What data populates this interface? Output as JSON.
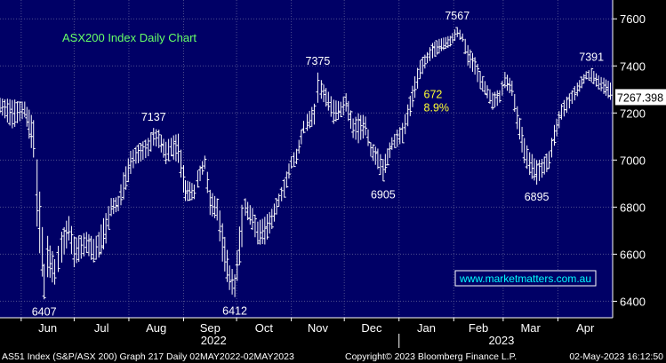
{
  "footer": {
    "left": "AS51 Index (S&P/ASX 200) Graph 217  Daily 02MAY2022-02MAY2023",
    "center": "Copyright© 2023 Bloomberg Finance L.P.",
    "right": "02-May-2023 16:12:50"
  },
  "colors": {
    "plot_bg": "#000066",
    "grid": "#4d4d8f",
    "bar": "#ffffff",
    "title_text": "#66ff66",
    "annotation_yellow": "#ffff33",
    "watermark_text": "#00ffff",
    "last_price_box": "#ffffff"
  },
  "chart_data": {
    "type": "ohlc",
    "title": "ASX200 Index Daily Chart",
    "watermark": "www.marketmatters.com.au",
    "x_axis": {
      "range": [
        "2022-05-20",
        "2023-05-02"
      ],
      "month_labels": [
        {
          "label": "Jun",
          "date": "2022-06-01"
        },
        {
          "label": "Jul",
          "date": "2022-07-01"
        },
        {
          "label": "Aug",
          "date": "2022-08-01"
        },
        {
          "label": "Sep",
          "date": "2022-09-01"
        },
        {
          "label": "Oct",
          "date": "2022-10-01"
        },
        {
          "label": "Nov",
          "date": "2022-11-01"
        },
        {
          "label": "Dec",
          "date": "2022-12-01"
        },
        {
          "label": "Jan",
          "date": "2023-01-01"
        },
        {
          "label": "Feb",
          "date": "2023-02-01"
        },
        {
          "label": "Mar",
          "date": "2023-03-01"
        },
        {
          "label": "Apr",
          "date": "2023-04-01"
        }
      ],
      "year_labels": [
        {
          "label": "2022",
          "date": "2022-09-18"
        },
        {
          "label": "2023",
          "date": "2023-02-28"
        }
      ],
      "year_divider_date": "2023-01-01"
    },
    "y_axis": {
      "range": [
        6330,
        7680
      ],
      "ticks": [
        6400,
        6600,
        6800,
        7000,
        7200,
        7400,
        7600
      ],
      "side": "right"
    },
    "grid": true,
    "last_price": 7267.398,
    "annotations": [
      {
        "text": "6407",
        "date": "2022-06-14",
        "value": 6407,
        "position": "below"
      },
      {
        "text": "7137",
        "date": "2022-08-15",
        "value": 7137,
        "position": "above"
      },
      {
        "text": "6412",
        "date": "2022-09-30",
        "value": 6412,
        "position": "below"
      },
      {
        "text": "7375",
        "date": "2022-11-16",
        "value": 7375,
        "position": "above"
      },
      {
        "text": "6905",
        "date": "2022-12-23",
        "value": 6905,
        "position": "below"
      },
      {
        "text": "7567",
        "date": "2023-02-03",
        "value": 7567,
        "position": "above"
      },
      {
        "text": "6895",
        "date": "2023-03-20",
        "value": 6895,
        "position": "below"
      },
      {
        "text": "7391",
        "date": "2023-04-20",
        "value": 7391,
        "position": "above"
      }
    ],
    "measurement": {
      "points": "672",
      "percent": "8.9%",
      "date": "2023-01-15",
      "value": 7210
    },
    "series": [
      {
        "points": [
          [
            "2022-05-20",
            7200,
            7265
          ],
          [
            "2022-05-27",
            7130,
            7260
          ],
          [
            "2022-06-03",
            7180,
            7250
          ],
          [
            "2022-06-08",
            7000,
            7180
          ],
          [
            "2022-06-10",
            6700,
            7020
          ],
          [
            "2022-06-13",
            6500,
            6720
          ],
          [
            "2022-06-14",
            6407,
            6560
          ],
          [
            "2022-06-16",
            6500,
            6680
          ],
          [
            "2022-06-20",
            6470,
            6580
          ],
          [
            "2022-06-22",
            6520,
            6640
          ],
          [
            "2022-06-24",
            6560,
            6700
          ],
          [
            "2022-06-28",
            6650,
            6770
          ],
          [
            "2022-07-01",
            6540,
            6680
          ],
          [
            "2022-07-05",
            6580,
            6680
          ],
          [
            "2022-07-08",
            6600,
            6700
          ],
          [
            "2022-07-12",
            6560,
            6670
          ],
          [
            "2022-07-15",
            6580,
            6700
          ],
          [
            "2022-07-19",
            6640,
            6780
          ],
          [
            "2022-07-22",
            6760,
            6840
          ],
          [
            "2022-07-26",
            6780,
            6850
          ],
          [
            "2022-07-29",
            6830,
            6950
          ],
          [
            "2022-08-02",
            6940,
            7040
          ],
          [
            "2022-08-05",
            6980,
            7060
          ],
          [
            "2022-08-09",
            7000,
            7080
          ],
          [
            "2022-08-12",
            7010,
            7100
          ],
          [
            "2022-08-15",
            7060,
            7137
          ],
          [
            "2022-08-18",
            7050,
            7130
          ],
          [
            "2022-08-22",
            6980,
            7080
          ],
          [
            "2022-08-25",
            7010,
            7100
          ],
          [
            "2022-08-29",
            6980,
            7120
          ],
          [
            "2022-09-01",
            6860,
            6980
          ],
          [
            "2022-09-02",
            6820,
            6920
          ],
          [
            "2022-09-07",
            6830,
            6900
          ],
          [
            "2022-09-09",
            6880,
            6960
          ],
          [
            "2022-09-13",
            6960,
            7020
          ],
          [
            "2022-09-16",
            6760,
            6880
          ],
          [
            "2022-09-20",
            6740,
            6840
          ],
          [
            "2022-09-23",
            6560,
            6740
          ],
          [
            "2022-09-27",
            6440,
            6560
          ],
          [
            "2022-09-30",
            6412,
            6520
          ],
          [
            "2022-10-04",
            6620,
            6820
          ],
          [
            "2022-10-06",
            6760,
            6840
          ],
          [
            "2022-10-10",
            6700,
            6800
          ],
          [
            "2022-10-13",
            6640,
            6740
          ],
          [
            "2022-10-17",
            6640,
            6760
          ],
          [
            "2022-10-21",
            6700,
            6800
          ],
          [
            "2022-10-25",
            6800,
            6860
          ],
          [
            "2022-10-28",
            6840,
            6920
          ],
          [
            "2022-11-01",
            6960,
            7020
          ],
          [
            "2022-11-04",
            6980,
            7050
          ],
          [
            "2022-11-08",
            7110,
            7170
          ],
          [
            "2022-11-10",
            7120,
            7200
          ],
          [
            "2022-11-14",
            7150,
            7240
          ],
          [
            "2022-11-16",
            7240,
            7375
          ],
          [
            "2022-11-18",
            7260,
            7340
          ],
          [
            "2022-11-22",
            7210,
            7290
          ],
          [
            "2022-11-25",
            7150,
            7260
          ],
          [
            "2022-11-29",
            7180,
            7250
          ],
          [
            "2022-12-02",
            7200,
            7290
          ],
          [
            "2022-12-06",
            7090,
            7180
          ],
          [
            "2022-12-09",
            7070,
            7200
          ],
          [
            "2022-12-13",
            7100,
            7190
          ],
          [
            "2022-12-16",
            7010,
            7080
          ],
          [
            "2022-12-20",
            6960,
            7050
          ],
          [
            "2022-12-23",
            6905,
            7010
          ],
          [
            "2022-12-28",
            7040,
            7100
          ],
          [
            "2023-01-03",
            7070,
            7160
          ],
          [
            "2023-01-06",
            7140,
            7240
          ],
          [
            "2023-01-10",
            7260,
            7360
          ],
          [
            "2023-01-13",
            7340,
            7430
          ],
          [
            "2023-01-17",
            7410,
            7460
          ],
          [
            "2023-01-20",
            7430,
            7500
          ],
          [
            "2023-01-25",
            7460,
            7520
          ],
          [
            "2023-01-30",
            7480,
            7530
          ],
          [
            "2023-02-03",
            7520,
            7567
          ],
          [
            "2023-02-06",
            7500,
            7540
          ],
          [
            "2023-02-09",
            7400,
            7490
          ],
          [
            "2023-02-13",
            7360,
            7440
          ],
          [
            "2023-02-16",
            7300,
            7380
          ],
          [
            "2023-02-20",
            7260,
            7320
          ],
          [
            "2023-02-23",
            7210,
            7290
          ],
          [
            "2023-02-27",
            7240,
            7300
          ],
          [
            "2023-03-02",
            7300,
            7380
          ],
          [
            "2023-03-06",
            7270,
            7340
          ],
          [
            "2023-03-09",
            7130,
            7230
          ],
          [
            "2023-03-13",
            6980,
            7100
          ],
          [
            "2023-03-16",
            6930,
            7040
          ],
          [
            "2023-03-20",
            6895,
            7000
          ],
          [
            "2023-03-23",
            6920,
            7010
          ],
          [
            "2023-03-27",
            6960,
            7040
          ],
          [
            "2023-03-30",
            7060,
            7150
          ],
          [
            "2023-04-03",
            7170,
            7240
          ],
          [
            "2023-04-06",
            7200,
            7270
          ],
          [
            "2023-04-12",
            7270,
            7330
          ],
          [
            "2023-04-17",
            7340,
            7380
          ],
          [
            "2023-04-20",
            7330,
            7391
          ],
          [
            "2023-04-24",
            7300,
            7360
          ],
          [
            "2023-04-27",
            7280,
            7350
          ],
          [
            "2023-05-02",
            7240,
            7330
          ]
        ]
      }
    ]
  }
}
